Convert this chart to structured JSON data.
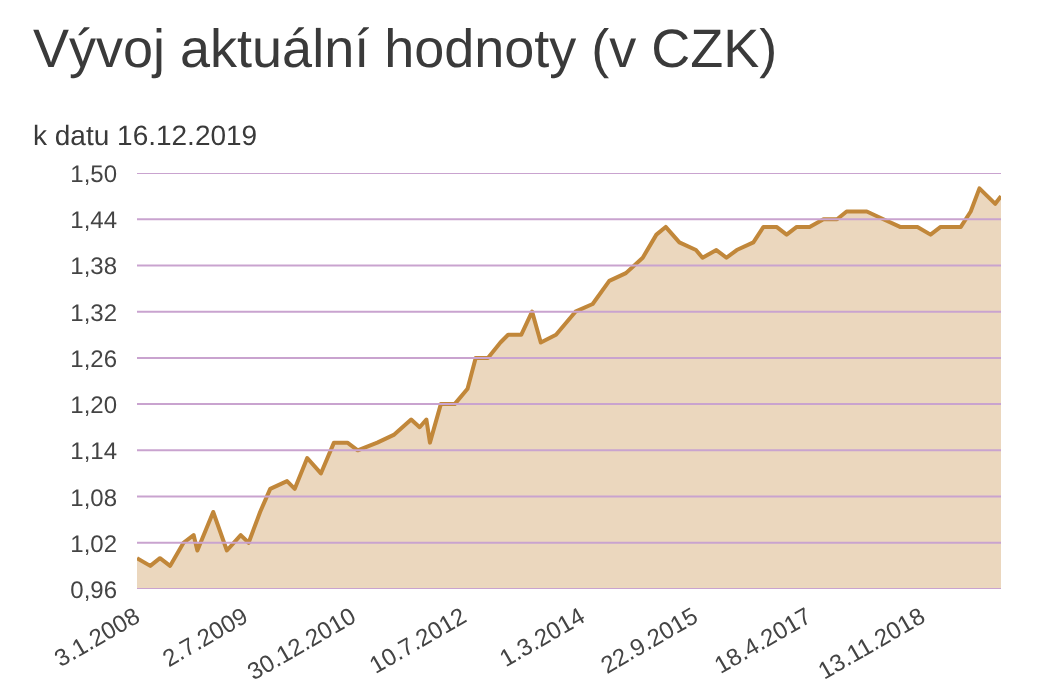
{
  "chart_data": {
    "type": "area",
    "title": "Vývoj aktuální hodnoty (v CZK)",
    "subtitle": "k datu 16.12.2019",
    "x": [
      "2008-01-03",
      "2008-03-10",
      "2008-04-28",
      "2008-06-18",
      "2008-08-25",
      "2008-10-15",
      "2008-11-03",
      "2009-01-22",
      "2009-04-01",
      "2009-06-10",
      "2009-07-20",
      "2009-09-16",
      "2009-11-06",
      "2010-01-30",
      "2010-03-10",
      "2010-05-12",
      "2010-07-20",
      "2010-09-24",
      "2010-12-01",
      "2011-01-22",
      "2011-05-01",
      "2011-07-23",
      "2011-10-19",
      "2011-12-01",
      "2012-01-04",
      "2012-01-22",
      "2012-03-17",
      "2012-05-26",
      "2012-07-30",
      "2012-09-09",
      "2012-11-10",
      "2013-01-12",
      "2013-02-20",
      "2013-04-27",
      "2013-06-21",
      "2013-08-04",
      "2013-10-20",
      "2014-01-26",
      "2014-04-23",
      "2014-07-16",
      "2014-10-08",
      "2015-01-01",
      "2015-03-11",
      "2015-04-27",
      "2015-07-05",
      "2015-09-27",
      "2015-10-30",
      "2016-01-08",
      "2016-02-28",
      "2016-04-20",
      "2016-07-13",
      "2016-09-02",
      "2016-11-07",
      "2016-12-28",
      "2017-02-17",
      "2017-04-23",
      "2017-07-02",
      "2017-09-09",
      "2017-10-27",
      "2018-02-06",
      "2018-05-01",
      "2018-07-24",
      "2018-10-20",
      "2018-12-25",
      "2019-02-14",
      "2019-05-27",
      "2019-07-16",
      "2019-08-29",
      "2019-10-08",
      "2019-11-17",
      "2019-12-16"
    ],
    "series": [
      {
        "color": "#c1873a",
        "values": [
          1.0,
          0.99,
          1.0,
          0.99,
          1.02,
          1.03,
          1.01,
          1.06,
          1.01,
          1.03,
          1.02,
          1.06,
          1.09,
          1.1,
          1.09,
          1.13,
          1.11,
          1.15,
          1.15,
          1.14,
          1.15,
          1.16,
          1.18,
          1.17,
          1.18,
          1.15,
          1.2,
          1.2,
          1.22,
          1.26,
          1.26,
          1.28,
          1.29,
          1.29,
          1.32,
          1.28,
          1.29,
          1.32,
          1.33,
          1.36,
          1.37,
          1.39,
          1.42,
          1.43,
          1.41,
          1.4,
          1.39,
          1.4,
          1.39,
          1.4,
          1.41,
          1.43,
          1.43,
          1.42,
          1.43,
          1.43,
          1.44,
          1.44,
          1.45,
          1.45,
          1.44,
          1.43,
          1.43,
          1.42,
          1.43,
          1.43,
          1.45,
          1.48,
          1.47,
          1.46,
          1.47
        ]
      }
    ],
    "xlim": [
      "2008-01-03",
      "2019-12-16"
    ],
    "xticks": [
      {
        "value": "2008-01-03",
        "label": "3.1.2008"
      },
      {
        "value": "2009-07-02",
        "label": "2.7.2009"
      },
      {
        "value": "2010-12-30",
        "label": "30.12.2010"
      },
      {
        "value": "2012-07-10",
        "label": "10.7.2012"
      },
      {
        "value": "2014-03-01",
        "label": "1.3.2014"
      },
      {
        "value": "2015-09-22",
        "label": "22.9.2015"
      },
      {
        "value": "2017-04-18",
        "label": "18.4.2017"
      },
      {
        "value": "2018-11-13",
        "label": "13.11.2018"
      }
    ],
    "ylim": [
      0.96,
      1.5
    ],
    "yticks": [
      {
        "value": 0.96,
        "label": "0,96"
      },
      {
        "value": 1.02,
        "label": "1,02"
      },
      {
        "value": 1.08,
        "label": "1,08"
      },
      {
        "value": 1.14,
        "label": "1,14"
      },
      {
        "value": 1.2,
        "label": "1,20"
      },
      {
        "value": 1.26,
        "label": "1,26"
      },
      {
        "value": 1.32,
        "label": "1,32"
      },
      {
        "value": 1.38,
        "label": "1,38"
      },
      {
        "value": 1.44,
        "label": "1,44"
      },
      {
        "value": 1.5,
        "label": "1,50"
      }
    ],
    "grid": "y"
  }
}
